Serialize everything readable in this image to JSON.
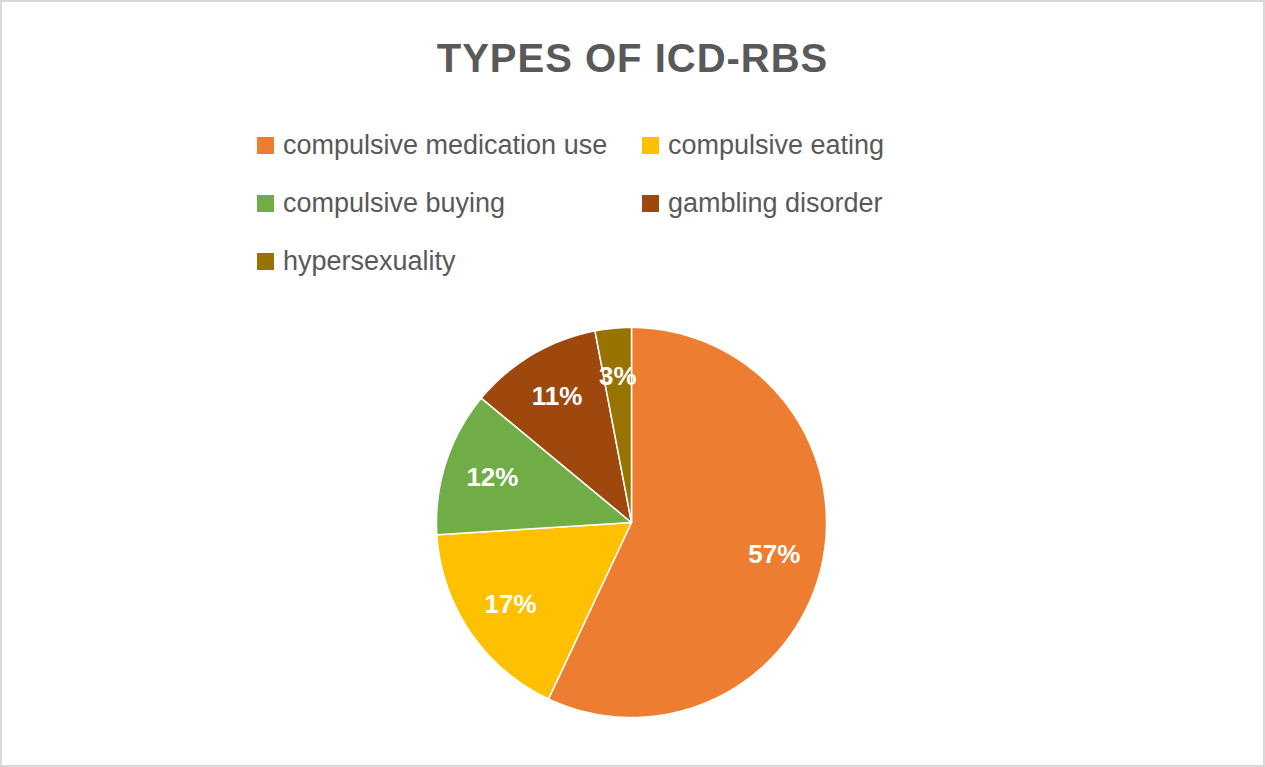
{
  "chart_data": {
    "type": "pie",
    "title": "TYPES OF ICD-RBS",
    "categories": [
      "compulsive medication use",
      "compulsive eating",
      "compulsive buying",
      "gambling disorder",
      "hypersexuality"
    ],
    "values": [
      57,
      17,
      12,
      11,
      3
    ],
    "value_labels": [
      "57%",
      "17%",
      "12%",
      "11%",
      "3%"
    ],
    "colors": [
      "#ED7D31",
      "#FFC000",
      "#70AD47",
      "#9E480E",
      "#997300"
    ],
    "data_labels": true,
    "legend": "top"
  }
}
